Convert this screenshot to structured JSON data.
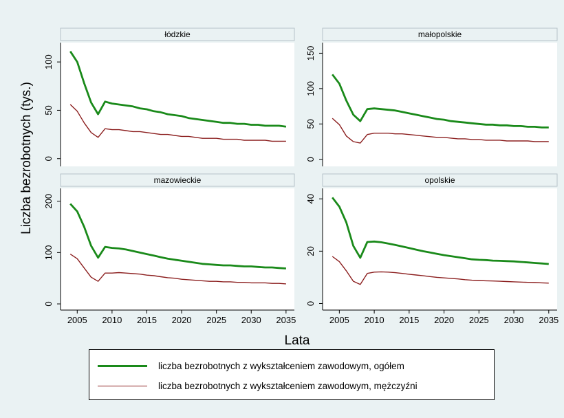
{
  "chart_data": {
    "type": "line",
    "ylabel": "Liczba bezrobotnych (tys.)",
    "xlabel": "Lata",
    "x_ticks": [
      2005,
      2010,
      2015,
      2020,
      2025,
      2030,
      2035
    ],
    "x": [
      2004,
      2005,
      2006,
      2007,
      2008,
      2009,
      2010,
      2011,
      2012,
      2013,
      2014,
      2015,
      2016,
      2017,
      2018,
      2019,
      2020,
      2021,
      2022,
      2023,
      2024,
      2025,
      2026,
      2027,
      2028,
      2029,
      2030,
      2031,
      2032,
      2033,
      2034,
      2035
    ],
    "series_names": [
      "liczba bezrobotnych z wykształceniem zawodowym, ogółem",
      "liczba bezrobotnych z wykształceniem zawodowym, mężczyźni"
    ],
    "series_colors": [
      "#1a8a1a",
      "#8b1e1e"
    ],
    "panels": [
      {
        "title": "łódzkie",
        "ylim": [
          -8,
          120
        ],
        "yticks": [
          0,
          50,
          100
        ],
        "series": [
          {
            "name": "liczba bezrobotnych z wykształceniem zawodowym, ogółem",
            "values": [
              111,
              100,
              78,
              58,
              46,
              59,
              57,
              56,
              55,
              54,
              52,
              51,
              49,
              48,
              46,
              45,
              44,
              42,
              41,
              40,
              39,
              38,
              37,
              37,
              36,
              36,
              35,
              35,
              34,
              34,
              34,
              33
            ]
          },
          {
            "name": "liczba bezrobotnych z wykształceniem zawodowym, mężczyźni",
            "values": [
              56,
              49,
              37,
              27,
              22,
              31,
              30,
              30,
              29,
              28,
              28,
              27,
              26,
              25,
              25,
              24,
              23,
              23,
              22,
              21,
              21,
              21,
              20,
              20,
              20,
              19,
              19,
              19,
              19,
              18,
              18,
              18
            ]
          }
        ]
      },
      {
        "title": "małopolskie",
        "ylim": [
          -10,
          165
        ],
        "yticks": [
          0,
          50,
          100,
          150
        ],
        "series": [
          {
            "name": "liczba bezrobotnych z wykształceniem zawodowym, ogółem",
            "values": [
              120,
              107,
              83,
              63,
              54,
              71,
              72,
              71,
              70,
              69,
              67,
              65,
              63,
              61,
              59,
              57,
              56,
              54,
              53,
              52,
              51,
              50,
              49,
              49,
              48,
              48,
              47,
              47,
              46,
              46,
              45,
              45
            ]
          },
          {
            "name": "liczba bezrobotnych z wykształceniem zawodowym, mężczyźni",
            "values": [
              58,
              49,
              33,
              25,
              23,
              35,
              37,
              37,
              37,
              36,
              36,
              35,
              34,
              33,
              32,
              31,
              31,
              30,
              29,
              29,
              28,
              28,
              27,
              27,
              27,
              26,
              26,
              26,
              26,
              25,
              25,
              25
            ]
          }
        ]
      },
      {
        "title": "mazowieckie",
        "ylim": [
          -12,
          225
        ],
        "yticks": [
          0,
          100,
          200
        ],
        "series": [
          {
            "name": "liczba bezrobotnych z wykształceniem zawodowym, ogółem",
            "values": [
              195,
              180,
              150,
              113,
              90,
              111,
              109,
              108,
              106,
              103,
              100,
              97,
              94,
              91,
              88,
              86,
              84,
              82,
              80,
              78,
              77,
              76,
              75,
              75,
              74,
              73,
              73,
              72,
              71,
              71,
              70,
              69
            ]
          },
          {
            "name": "liczba bezrobotnych z wykształceniem zawodowym, mężczyźni",
            "values": [
              97,
              88,
              70,
              52,
              44,
              60,
              60,
              61,
              60,
              59,
              58,
              56,
              55,
              53,
              51,
              50,
              48,
              47,
              46,
              45,
              44,
              44,
              43,
              43,
              42,
              42,
              41,
              41,
              41,
              40,
              40,
              39
            ]
          }
        ]
      },
      {
        "title": "opolskie",
        "ylim": [
          -2.5,
          44
        ],
        "yticks": [
          0,
          20,
          40
        ],
        "series": [
          {
            "name": "liczba bezrobotnych z wykształceniem zawodowym, ogółem",
            "values": [
              40.5,
              37,
              31,
              22,
              17.5,
              23.5,
              23.7,
              23.4,
              22.9,
              22.4,
              21.8,
              21.2,
              20.6,
              20,
              19.5,
              19,
              18.5,
              18.1,
              17.7,
              17.3,
              16.9,
              16.7,
              16.6,
              16.4,
              16.3,
              16.2,
              16.1,
              15.9,
              15.7,
              15.5,
              15.3,
              15.1
            ]
          },
          {
            "name": "liczba bezrobotnych z wykształceniem zawodowym, mężczyźni",
            "values": [
              18,
              16,
              12.5,
              8.5,
              7.3,
              11.5,
              12,
              12.1,
              12,
              11.8,
              11.5,
              11.2,
              10.9,
              10.6,
              10.3,
              10,
              9.8,
              9.6,
              9.4,
              9.1,
              8.9,
              8.8,
              8.7,
              8.6,
              8.5,
              8.4,
              8.3,
              8.2,
              8.1,
              8,
              7.9,
              7.8
            ]
          }
        ]
      }
    ]
  }
}
